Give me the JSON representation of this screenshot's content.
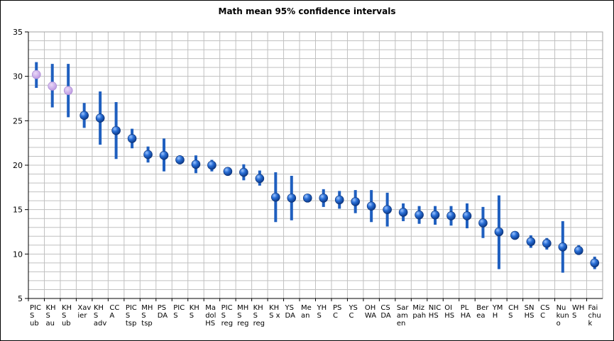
{
  "chart_data": {
    "type": "scatter",
    "title": "Math mean 95% confidence intervals",
    "xlabel": "",
    "ylabel": "",
    "ylim": [
      5,
      35
    ],
    "yticks": [
      5,
      10,
      15,
      20,
      25,
      30,
      35
    ],
    "grid": true,
    "legend": "none",
    "colors": {
      "errorbar": "#1f5fbf",
      "marker_blue": "#2a6fd6",
      "marker_highlight": "#c8a8e8",
      "grid": "#c0c0c0"
    },
    "categories": [
      {
        "label": "PIC\nS\nub",
        "mean": 30.2,
        "low": 28.7,
        "high": 31.6,
        "highlight": true
      },
      {
        "label": "KH\nS\nau",
        "mean": 28.9,
        "low": 26.5,
        "high": 31.4,
        "highlight": true
      },
      {
        "label": "KH\nS\nub",
        "mean": 28.4,
        "low": 25.4,
        "high": 31.4,
        "highlight": true
      },
      {
        "label": "Xav\nier",
        "mean": 25.6,
        "low": 24.2,
        "high": 27.0,
        "highlight": false
      },
      {
        "label": "KH\nS\nadv",
        "mean": 25.3,
        "low": 22.3,
        "high": 28.3,
        "highlight": false
      },
      {
        "label": "CC\nA",
        "mean": 23.9,
        "low": 20.7,
        "high": 27.1,
        "highlight": false
      },
      {
        "label": "PIC\nS\ntsp",
        "mean": 23.0,
        "low": 21.9,
        "high": 24.1,
        "highlight": false
      },
      {
        "label": "MH\nS\ntsp",
        "mean": 21.2,
        "low": 20.3,
        "high": 22.1,
        "highlight": false
      },
      {
        "label": "PS\nDA",
        "mean": 21.1,
        "low": 19.3,
        "high": 23.0,
        "highlight": false
      },
      {
        "label": "PIC\nS",
        "mean": 20.6,
        "low": 20.1,
        "high": 21.1,
        "highlight": false
      },
      {
        "label": "KH\nS",
        "mean": 20.1,
        "low": 19.1,
        "high": 21.1,
        "highlight": false
      },
      {
        "label": "Ma\ndol\nHS",
        "mean": 20.0,
        "low": 19.3,
        "high": 20.6,
        "highlight": false
      },
      {
        "label": "PIC\nS\nreg",
        "mean": 19.3,
        "low": 18.9,
        "high": 19.7,
        "highlight": false
      },
      {
        "label": "MH\nS\nreg",
        "mean": 19.2,
        "low": 18.3,
        "high": 20.1,
        "highlight": false
      },
      {
        "label": "KH\nS\nreg",
        "mean": 18.5,
        "low": 17.7,
        "high": 19.4,
        "highlight": false
      },
      {
        "label": "KH\nS x",
        "mean": 16.4,
        "low": 13.6,
        "high": 19.2,
        "highlight": false
      },
      {
        "label": "YS\nDA",
        "mean": 16.3,
        "low": 13.8,
        "high": 18.8,
        "highlight": false
      },
      {
        "label": "Me\nan",
        "mean": 16.3,
        "low": 16.0,
        "high": 16.6,
        "highlight": false
      },
      {
        "label": "YH\nS",
        "mean": 16.3,
        "low": 15.3,
        "high": 17.3,
        "highlight": false
      },
      {
        "label": "PS\nC",
        "mean": 16.1,
        "low": 15.1,
        "high": 17.1,
        "highlight": false
      },
      {
        "label": "YS\nC",
        "mean": 15.9,
        "low": 14.6,
        "high": 17.2,
        "highlight": false
      },
      {
        "label": "OH\nWA",
        "mean": 15.4,
        "low": 13.6,
        "high": 17.2,
        "highlight": false
      },
      {
        "label": "CS\nDA",
        "mean": 15.0,
        "low": 13.1,
        "high": 16.9,
        "highlight": false
      },
      {
        "label": "Sar\nam\nen",
        "mean": 14.7,
        "low": 13.7,
        "high": 15.7,
        "highlight": false
      },
      {
        "label": "Miz\npah",
        "mean": 14.4,
        "low": 13.4,
        "high": 15.4,
        "highlight": false
      },
      {
        "label": "NIC\nHS",
        "mean": 14.4,
        "low": 13.3,
        "high": 15.4,
        "highlight": false
      },
      {
        "label": "OI\nHS",
        "mean": 14.3,
        "low": 13.2,
        "high": 15.4,
        "highlight": false
      },
      {
        "label": "PL\nHA",
        "mean": 14.3,
        "low": 12.9,
        "high": 15.7,
        "highlight": false
      },
      {
        "label": "Ber\nea",
        "mean": 13.5,
        "low": 11.8,
        "high": 15.3,
        "highlight": false
      },
      {
        "label": "YM\nH",
        "mean": 12.5,
        "low": 8.3,
        "high": 16.6,
        "highlight": false
      },
      {
        "label": "CH\nS",
        "mean": 12.1,
        "low": 11.8,
        "high": 12.4,
        "highlight": false
      },
      {
        "label": "SN\nHS",
        "mean": 11.4,
        "low": 10.7,
        "high": 12.1,
        "highlight": false
      },
      {
        "label": "CS\nC",
        "mean": 11.2,
        "low": 10.5,
        "high": 11.8,
        "highlight": false
      },
      {
        "label": "Nu\nkun\no",
        "mean": 10.8,
        "low": 7.9,
        "high": 13.7,
        "highlight": false
      },
      {
        "label": "WH\nS",
        "mean": 10.4,
        "low": 9.9,
        "high": 11.0,
        "highlight": false
      },
      {
        "label": "Fai\nchu\nk",
        "mean": 9.0,
        "low": 8.3,
        "high": 9.7,
        "highlight": false
      }
    ]
  }
}
